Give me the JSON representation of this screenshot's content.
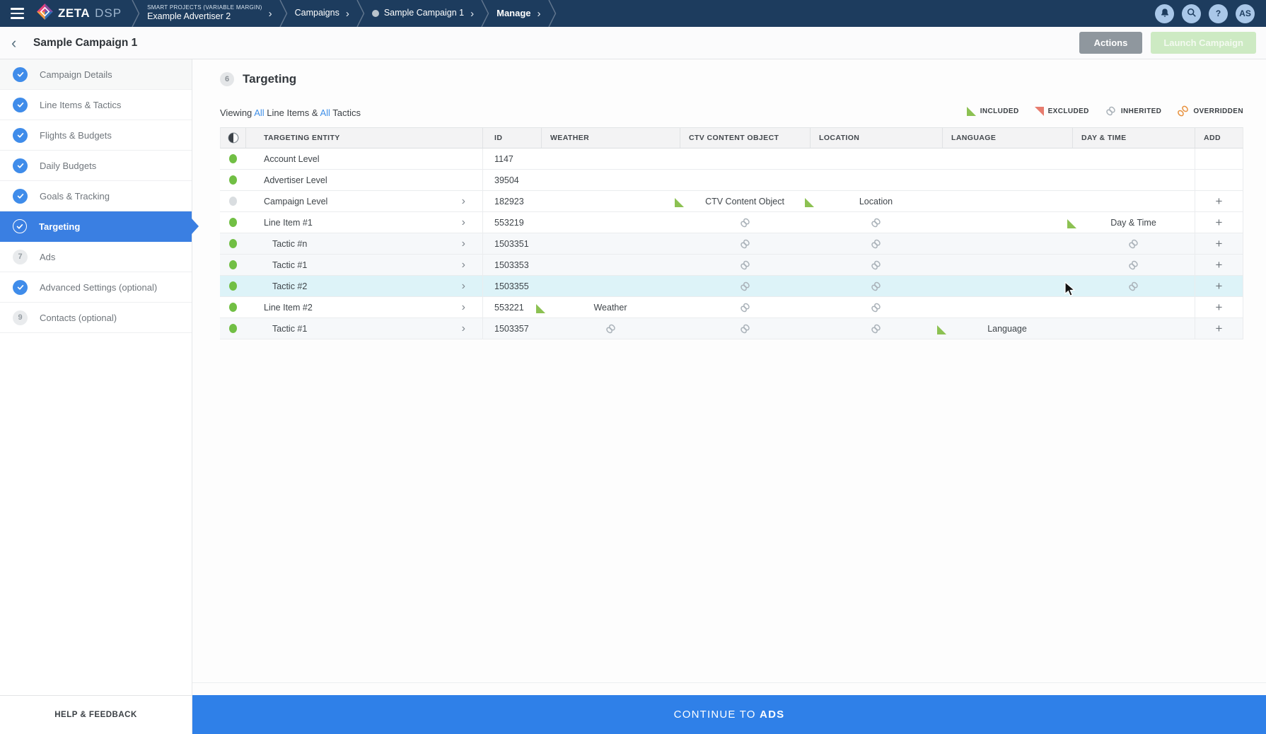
{
  "topbar": {
    "brand_name": "ZETA",
    "brand_suffix": "DSP",
    "breadcrumbs": [
      {
        "eyebrow": "SMART PROJECTS (VARIABLE MARGIN)",
        "label": "Example Advertiser 2",
        "dot": false,
        "bold": false
      },
      {
        "eyebrow": "",
        "label": "Campaigns",
        "dot": false,
        "bold": false
      },
      {
        "eyebrow": "",
        "label": "Sample Campaign 1",
        "dot": true,
        "bold": false
      },
      {
        "eyebrow": "",
        "label": "Manage",
        "dot": false,
        "bold": true
      }
    ],
    "chevron_glyph": "›",
    "actions": [
      {
        "name": "notifications-bell",
        "icon": "bell-icon",
        "text": ""
      },
      {
        "name": "search",
        "icon": "search-icon",
        "text": ""
      },
      {
        "name": "help",
        "icon": "question-icon",
        "text": "?"
      },
      {
        "name": "avatar",
        "icon": "avatar-initials",
        "text": "AS"
      }
    ]
  },
  "header": {
    "back_glyph": "‹",
    "title": "Sample Campaign 1",
    "actions_label": "Actions",
    "launch_label": "Launch Campaign"
  },
  "sidebar": {
    "items": [
      {
        "label": "Campaign Details",
        "state": "done",
        "number": ""
      },
      {
        "label": "Line Items & Tactics",
        "state": "done",
        "number": ""
      },
      {
        "label": "Flights & Budgets",
        "state": "done",
        "number": ""
      },
      {
        "label": "Daily Budgets",
        "state": "done",
        "number": ""
      },
      {
        "label": "Goals & Tracking",
        "state": "done",
        "number": ""
      },
      {
        "label": "Targeting",
        "state": "active",
        "number": ""
      },
      {
        "label": "Ads",
        "state": "todo",
        "number": "7"
      },
      {
        "label": "Advanced Settings (optional)",
        "state": "done",
        "number": ""
      },
      {
        "label": "Contacts (optional)",
        "state": "todo",
        "number": "9"
      }
    ]
  },
  "main": {
    "step_number": "6",
    "title": "Targeting",
    "viewing": {
      "prefix": "Viewing",
      "all_a": "All",
      "mid": "Line Items &",
      "all_b": "All",
      "tail": "Tactics"
    },
    "legend": [
      {
        "type": "included",
        "label": "INCLUDED"
      },
      {
        "type": "excluded",
        "label": "EXCLUDED"
      },
      {
        "type": "inherited",
        "label": "INHERITED"
      },
      {
        "type": "overridden",
        "label": "OVERRIDDEN"
      }
    ],
    "table": {
      "columns": [
        "",
        "TARGETING ENTITY",
        "ID",
        "WEATHER",
        "CTV CONTENT OBJECT",
        "LOCATION",
        "LANGUAGE",
        "DAY & TIME",
        "ADD"
      ],
      "add_glyph": "+",
      "rows": [
        {
          "name": "Account Level",
          "id": "1147",
          "status": "on",
          "indent": 0,
          "expandable": false,
          "highlight": false,
          "tinted": false,
          "add": false,
          "cells": {
            "weather": null,
            "ctv": null,
            "location": null,
            "language": null,
            "daytime": null
          }
        },
        {
          "name": "Advertiser Level",
          "id": "39504",
          "status": "on",
          "indent": 0,
          "expandable": false,
          "highlight": false,
          "tinted": false,
          "add": false,
          "cells": {
            "weather": null,
            "ctv": null,
            "location": null,
            "language": null,
            "daytime": null
          }
        },
        {
          "name": "Campaign Level",
          "id": "182923",
          "status": "off",
          "indent": 0,
          "expandable": true,
          "highlight": false,
          "tinted": false,
          "add": true,
          "cells": {
            "weather": null,
            "ctv": {
              "type": "included",
              "label": "CTV Content Object"
            },
            "location": {
              "type": "included",
              "label": "Location"
            },
            "language": null,
            "daytime": null
          }
        },
        {
          "name": "Line Item #1",
          "id": "553219",
          "status": "on",
          "indent": 0,
          "expandable": true,
          "highlight": false,
          "tinted": false,
          "add": true,
          "cells": {
            "weather": null,
            "ctv": {
              "type": "inherited",
              "label": ""
            },
            "location": {
              "type": "inherited",
              "label": ""
            },
            "language": null,
            "daytime": {
              "type": "included",
              "label": "Day & Time"
            }
          }
        },
        {
          "name": "Tactic #n",
          "id": "1503351",
          "status": "on",
          "indent": 1,
          "expandable": true,
          "highlight": false,
          "tinted": true,
          "add": true,
          "cells": {
            "weather": null,
            "ctv": {
              "type": "inherited",
              "label": ""
            },
            "location": {
              "type": "inherited",
              "label": ""
            },
            "language": null,
            "daytime": {
              "type": "inherited",
              "label": ""
            }
          }
        },
        {
          "name": "Tactic #1",
          "id": "1503353",
          "status": "on",
          "indent": 1,
          "expandable": true,
          "highlight": false,
          "tinted": true,
          "add": true,
          "cells": {
            "weather": null,
            "ctv": {
              "type": "inherited",
              "label": ""
            },
            "location": {
              "type": "inherited",
              "label": ""
            },
            "language": null,
            "daytime": {
              "type": "inherited",
              "label": ""
            }
          }
        },
        {
          "name": "Tactic #2",
          "id": "1503355",
          "status": "on",
          "indent": 1,
          "expandable": true,
          "highlight": true,
          "tinted": false,
          "add": true,
          "cells": {
            "weather": null,
            "ctv": {
              "type": "inherited",
              "label": ""
            },
            "location": {
              "type": "inherited",
              "label": ""
            },
            "language": null,
            "daytime": {
              "type": "inherited",
              "label": ""
            }
          }
        },
        {
          "name": "Line Item #2",
          "id": "553221",
          "status": "on",
          "indent": 0,
          "expandable": true,
          "highlight": false,
          "tinted": false,
          "add": true,
          "cells": {
            "weather": {
              "type": "included",
              "label": "Weather"
            },
            "ctv": {
              "type": "inherited",
              "label": ""
            },
            "location": {
              "type": "inherited",
              "label": ""
            },
            "language": null,
            "daytime": null
          }
        },
        {
          "name": "Tactic #1",
          "id": "1503357",
          "status": "on",
          "indent": 1,
          "expandable": true,
          "highlight": false,
          "tinted": true,
          "add": true,
          "cells": {
            "weather": {
              "type": "inherited",
              "label": ""
            },
            "ctv": {
              "type": "inherited",
              "label": ""
            },
            "location": {
              "type": "inherited",
              "label": ""
            },
            "language": {
              "type": "included",
              "label": "Language"
            },
            "daytime": null
          }
        }
      ]
    }
  },
  "footer": {
    "help_label": "HELP & FEEDBACK",
    "continue_prefix": "CONTINUE TO",
    "continue_bold": "ADS"
  },
  "colors": {
    "topbar_navy": "#1d3c5e",
    "accent_blue": "#3a7fe2",
    "included_green": "#8cc152",
    "excluded_red": "#e77c6e",
    "inherited_gray": "#aab2b9",
    "overridden_orange": "#e8923f",
    "status_green": "#71bf44",
    "status_gray": "#d9dde0",
    "highlight_cyan": "#ddf3f8",
    "continue_blue": "#2f80e8"
  }
}
